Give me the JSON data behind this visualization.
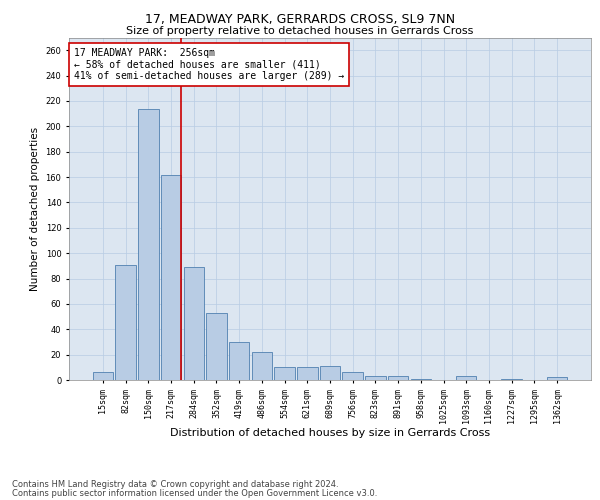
{
  "title": "17, MEADWAY PARK, GERRARDS CROSS, SL9 7NN",
  "subtitle": "Size of property relative to detached houses in Gerrards Cross",
  "xlabel": "Distribution of detached houses by size in Gerrards Cross",
  "ylabel": "Number of detached properties",
  "categories": [
    "15sqm",
    "82sqm",
    "150sqm",
    "217sqm",
    "284sqm",
    "352sqm",
    "419sqm",
    "486sqm",
    "554sqm",
    "621sqm",
    "689sqm",
    "756sqm",
    "823sqm",
    "891sqm",
    "958sqm",
    "1025sqm",
    "1093sqm",
    "1160sqm",
    "1227sqm",
    "1295sqm",
    "1362sqm"
  ],
  "values": [
    6,
    91,
    214,
    162,
    89,
    53,
    30,
    22,
    10,
    10,
    11,
    6,
    3,
    3,
    1,
    0,
    3,
    0,
    1,
    0,
    2
  ],
  "bar_color": "#b8cce4",
  "bar_edge_color": "#5080b0",
  "vline_color": "#cc0000",
  "vline_x": 3.45,
  "annotation_text": "17 MEADWAY PARK:  256sqm\n← 58% of detached houses are smaller (411)\n41% of semi-detached houses are larger (289) →",
  "annotation_box_color": "white",
  "annotation_box_edge_color": "#cc0000",
  "ylim": [
    0,
    270
  ],
  "yticks": [
    0,
    20,
    40,
    60,
    80,
    100,
    120,
    140,
    160,
    180,
    200,
    220,
    240,
    260
  ],
  "grid_color": "#b8cce4",
  "background_color": "#dce6f1",
  "footer_line1": "Contains HM Land Registry data © Crown copyright and database right 2024.",
  "footer_line2": "Contains public sector information licensed under the Open Government Licence v3.0.",
  "title_fontsize": 9,
  "subtitle_fontsize": 8,
  "xlabel_fontsize": 8,
  "ylabel_fontsize": 7.5,
  "tick_fontsize": 6,
  "annotation_fontsize": 7,
  "footer_fontsize": 6
}
